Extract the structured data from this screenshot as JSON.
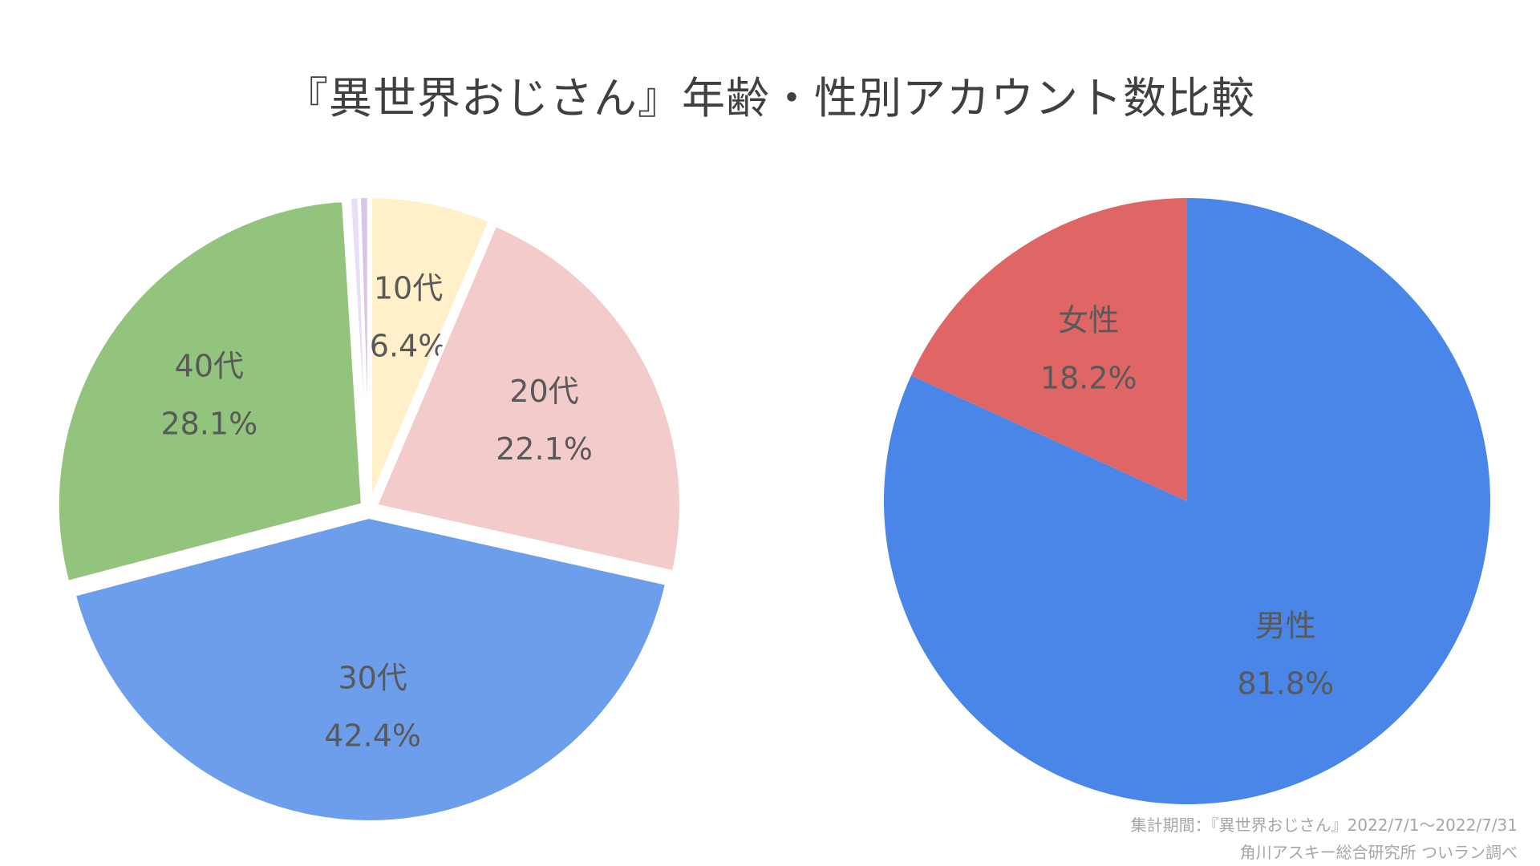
{
  "title": "『異世界おじさん』年齢・性別アカウント数比較",
  "footnote": {
    "period": "集計期間：『異世界おじさん』2022/7/1～2022/7/31",
    "source": "角川アスキー総合研究所 ついラン調べ"
  },
  "chart_data": [
    {
      "type": "pie",
      "title": "",
      "slices": [
        {
          "label": "10代",
          "value": 6.4,
          "value_text": "6.4%",
          "color": "#fff0c9"
        },
        {
          "label": "20代",
          "value": 22.1,
          "value_text": "22.1%",
          "color": "#f3cbcb"
        },
        {
          "label": "30代",
          "value": 42.4,
          "value_text": "42.4%",
          "color": "#6d9eeb"
        },
        {
          "label": "40代",
          "value": 28.1,
          "value_text": "28.1%",
          "color": "#93c47d"
        },
        {
          "label": "",
          "value": 0.5,
          "value_text": "",
          "color": "#e8def8"
        },
        {
          "label": "",
          "value": 0.5,
          "value_text": "",
          "color": "#d9c6e6"
        }
      ],
      "exploded": true,
      "start_angle": "12 o'clock",
      "direction": "clockwise"
    },
    {
      "type": "pie",
      "title": "",
      "slices": [
        {
          "label": "男性",
          "value": 81.8,
          "value_text": "81.8%",
          "color": "#4a86e8"
        },
        {
          "label": "女性",
          "value": 18.2,
          "value_text": "18.2%",
          "color": "#e06666"
        }
      ],
      "exploded": false,
      "start_angle": "12 o'clock",
      "direction": "clockwise"
    }
  ]
}
